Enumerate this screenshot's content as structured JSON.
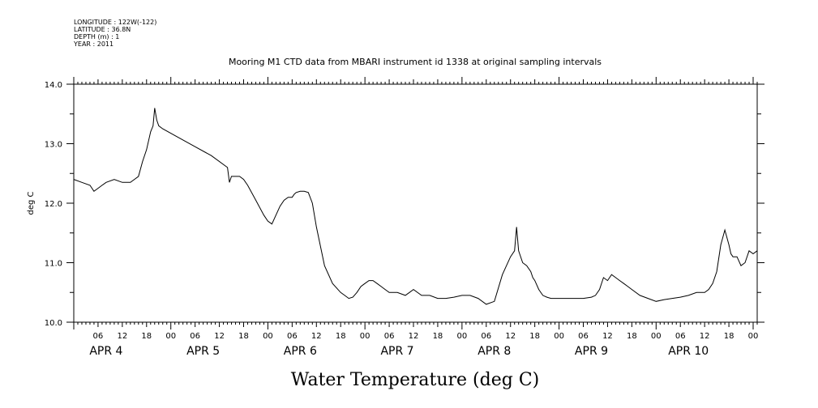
{
  "header": {
    "longitude": "LONGITUDE : 122W(-122)",
    "latitude": "LATITUDE : 36.8N",
    "depth": "DEPTH (m) : 1",
    "year": "YEAR : 2011"
  },
  "chart_data": {
    "type": "line",
    "title": "Mooring M1 CTD data from MBARI instrument id 1338 at original sampling intervals",
    "xlabel": "Water Temperature (deg C)",
    "ylabel": "deg C",
    "ylim": [
      10.0,
      14.0
    ],
    "y_ticks": [
      "10.0",
      "11.0",
      "12.0",
      "13.0",
      "14.0"
    ],
    "x_range_hours": [
      0,
      169
    ],
    "hour_tick_labels": [
      "06",
      "12",
      "18",
      "00",
      "06",
      "12",
      "18",
      "00",
      "06",
      "12",
      "18",
      "00",
      "06",
      "12",
      "18",
      "00",
      "06",
      "12",
      "18",
      "00",
      "06",
      "12",
      "18",
      "00",
      "06",
      "12",
      "18",
      "00"
    ],
    "day_labels": [
      "APR 4",
      "APR 5",
      "APR 6",
      "APR 7",
      "APR 8",
      "APR 9",
      "APR 10"
    ],
    "grid": false,
    "series": [
      {
        "x": [
          0,
          2,
          4,
          5,
          6,
          7,
          8,
          10,
          12,
          14,
          15,
          16,
          17,
          18,
          19,
          19.6,
          20,
          20.5,
          21,
          22,
          26,
          30,
          34,
          38,
          38.5,
          39,
          40,
          41,
          42,
          43,
          45,
          47,
          48,
          49,
          50,
          51,
          52,
          53,
          54,
          54.5,
          55,
          56,
          57,
          58,
          59,
          60,
          62,
          64,
          66,
          67,
          68,
          69,
          70,
          71,
          72,
          73,
          74,
          75,
          76,
          77,
          78,
          80,
          82,
          83,
          84,
          86,
          88,
          90,
          92,
          94,
          96,
          98,
          100,
          102,
          104,
          106,
          108,
          109,
          109.5,
          110,
          111,
          112,
          113,
          113.5,
          114,
          115,
          116,
          117,
          118,
          119,
          120,
          122,
          124,
          126,
          128,
          129,
          130,
          131,
          132,
          133,
          134,
          135,
          136,
          137,
          138,
          140,
          142,
          144,
          146,
          148,
          150,
          152,
          154,
          156,
          157,
          158,
          159,
          160,
          161,
          162,
          162.5,
          163,
          164,
          165,
          166,
          167,
          168,
          169
        ],
        "y": [
          12.4,
          12.35,
          12.3,
          12.2,
          12.25,
          12.3,
          12.35,
          12.4,
          12.35,
          12.35,
          12.4,
          12.45,
          12.7,
          12.9,
          13.2,
          13.3,
          13.6,
          13.4,
          13.3,
          13.25,
          13.1,
          12.95,
          12.8,
          12.6,
          12.35,
          12.45,
          12.45,
          12.45,
          12.4,
          12.3,
          12.05,
          11.8,
          11.7,
          11.65,
          11.8,
          11.95,
          12.05,
          12.1,
          12.1,
          12.15,
          12.18,
          12.2,
          12.2,
          12.18,
          12.0,
          11.6,
          10.95,
          10.65,
          10.5,
          10.45,
          10.4,
          10.42,
          10.5,
          10.6,
          10.65,
          10.7,
          10.7,
          10.65,
          10.6,
          10.55,
          10.5,
          10.5,
          10.45,
          10.5,
          10.55,
          10.45,
          10.45,
          10.4,
          10.4,
          10.42,
          10.45,
          10.45,
          10.4,
          10.3,
          10.35,
          10.8,
          11.1,
          11.2,
          11.6,
          11.2,
          11.0,
          10.95,
          10.85,
          10.75,
          10.7,
          10.55,
          10.45,
          10.42,
          10.4,
          10.4,
          10.4,
          10.4,
          10.4,
          10.4,
          10.42,
          10.45,
          10.55,
          10.75,
          10.7,
          10.8,
          10.75,
          10.7,
          10.65,
          10.6,
          10.55,
          10.45,
          10.4,
          10.35,
          10.38,
          10.4,
          10.42,
          10.45,
          10.5,
          10.5,
          10.55,
          10.65,
          10.85,
          11.3,
          11.55,
          11.3,
          11.15,
          11.1,
          11.1,
          10.95,
          11.0,
          11.2,
          11.15,
          11.2
        ]
      }
    ]
  }
}
